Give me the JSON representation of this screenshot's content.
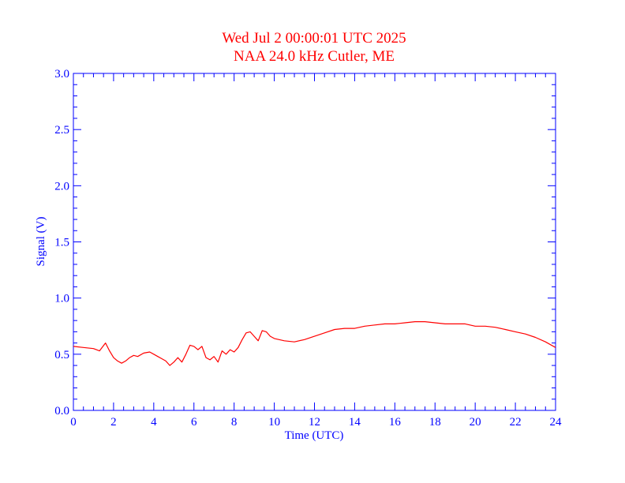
{
  "chart_data": {
    "type": "line",
    "title": "Wed Jul 2 00:00:01 UTC 2025",
    "subtitle": "NAA 24.0 kHz Cutler, ME",
    "xlabel": "Time (UTC)",
    "ylabel": "Signal (V)",
    "xlim": [
      0,
      24
    ],
    "ylim": [
      0,
      3.0
    ],
    "x_ticks": [
      "0",
      "2",
      "4",
      "6",
      "8",
      "10",
      "12",
      "14",
      "16",
      "18",
      "20",
      "22",
      "24"
    ],
    "y_ticks": [
      "0.0",
      "0.5",
      "1.0",
      "1.5",
      "2.0",
      "2.5",
      "3.0"
    ],
    "grid": false,
    "colors": {
      "axes": "#0000ff",
      "title": "#ff0000",
      "series": "#ff0000"
    },
    "series": [
      {
        "x": [
          0,
          0.5,
          1.0,
          1.3,
          1.6,
          1.8,
          2.0,
          2.2,
          2.4,
          2.6,
          2.8,
          3.0,
          3.2,
          3.5,
          3.8,
          4.0,
          4.2,
          4.4,
          4.6,
          4.8,
          5.0,
          5.2,
          5.4,
          5.6,
          5.8,
          6.0,
          6.2,
          6.4,
          6.6,
          6.8,
          7.0,
          7.2,
          7.4,
          7.6,
          7.8,
          8.0,
          8.2,
          8.4,
          8.6,
          8.8,
          9.0,
          9.2,
          9.4,
          9.6,
          9.8,
          10.0,
          10.5,
          11.0,
          11.5,
          12.0,
          12.5,
          13.0,
          13.5,
          14.0,
          14.5,
          15.0,
          15.5,
          16.0,
          16.5,
          17.0,
          17.5,
          18.0,
          18.5,
          19.0,
          19.5,
          20.0,
          20.5,
          21.0,
          21.5,
          22.0,
          22.5,
          23.0,
          23.5,
          24.0
        ],
        "y": [
          0.57,
          0.56,
          0.55,
          0.53,
          0.6,
          0.53,
          0.47,
          0.44,
          0.42,
          0.44,
          0.47,
          0.49,
          0.48,
          0.51,
          0.52,
          0.5,
          0.48,
          0.46,
          0.44,
          0.4,
          0.43,
          0.47,
          0.43,
          0.5,
          0.58,
          0.57,
          0.54,
          0.57,
          0.47,
          0.45,
          0.48,
          0.43,
          0.53,
          0.5,
          0.54,
          0.52,
          0.56,
          0.63,
          0.69,
          0.7,
          0.66,
          0.62,
          0.71,
          0.7,
          0.66,
          0.64,
          0.62,
          0.61,
          0.63,
          0.66,
          0.69,
          0.72,
          0.73,
          0.73,
          0.75,
          0.76,
          0.77,
          0.77,
          0.78,
          0.79,
          0.79,
          0.78,
          0.77,
          0.77,
          0.77,
          0.75,
          0.75,
          0.74,
          0.72,
          0.7,
          0.68,
          0.65,
          0.61,
          0.56
        ]
      }
    ]
  }
}
